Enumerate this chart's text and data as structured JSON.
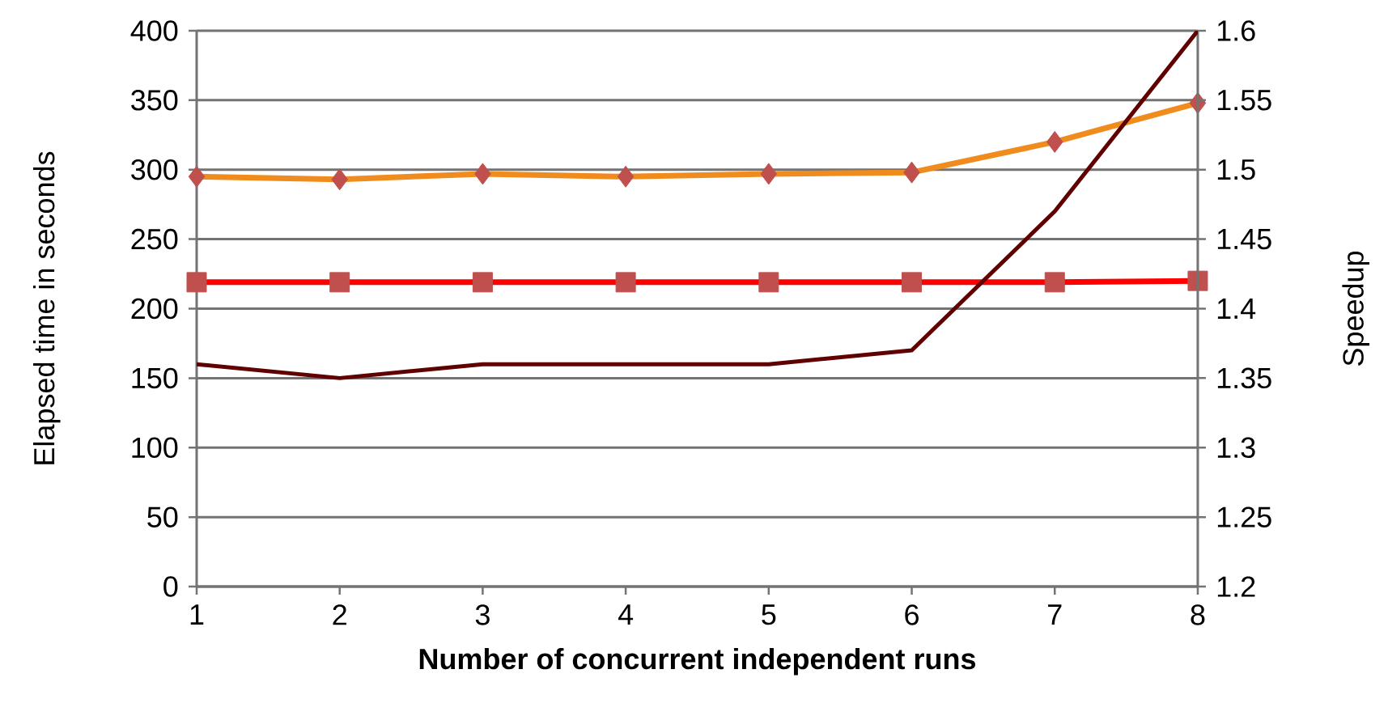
{
  "chart_data": {
    "type": "line",
    "xlabel": "Number of concurrent independent runs",
    "ylabel": "Elapsed time in seconds",
    "y2label": "Speedup",
    "x": [
      1,
      2,
      3,
      4,
      5,
      6,
      7,
      8
    ],
    "xlim": [
      1,
      8
    ],
    "xticks": [
      1,
      2,
      3,
      4,
      5,
      6,
      7,
      8
    ],
    "ylim": [
      0,
      400
    ],
    "yticks": [
      0,
      50,
      100,
      150,
      200,
      250,
      300,
      350,
      400
    ],
    "y2lim": [
      1.2,
      1.6
    ],
    "y2ticks": [
      {
        "value": 1.2,
        "label": "1.2"
      },
      {
        "value": 1.25,
        "label": "1.25"
      },
      {
        "value": 1.3,
        "label": "1.3"
      },
      {
        "value": 1.35,
        "label": "1.35"
      },
      {
        "value": 1.4,
        "label": "1.4"
      },
      {
        "value": 1.45,
        "label": "1.45"
      },
      {
        "value": 1.5,
        "label": "1.5"
      },
      {
        "value": 1.55,
        "label": "1.55"
      },
      {
        "value": 1.6,
        "label": "1.6"
      }
    ],
    "grid": "y",
    "series": [
      {
        "color": "#f08c1e",
        "marker": "diamond",
        "values": [
          295,
          293,
          297,
          295,
          297,
          298,
          320,
          348
        ]
      },
      {
        "color": "#ff0000",
        "marker": "square",
        "values": [
          219,
          219,
          219,
          219,
          219,
          219,
          219,
          220
        ]
      },
      {
        "color": "#600000",
        "marker": "none",
        "axis": "y2",
        "values": [
          1.36,
          1.35,
          1.36,
          1.36,
          1.36,
          1.37,
          1.47,
          1.6
        ]
      }
    ]
  }
}
